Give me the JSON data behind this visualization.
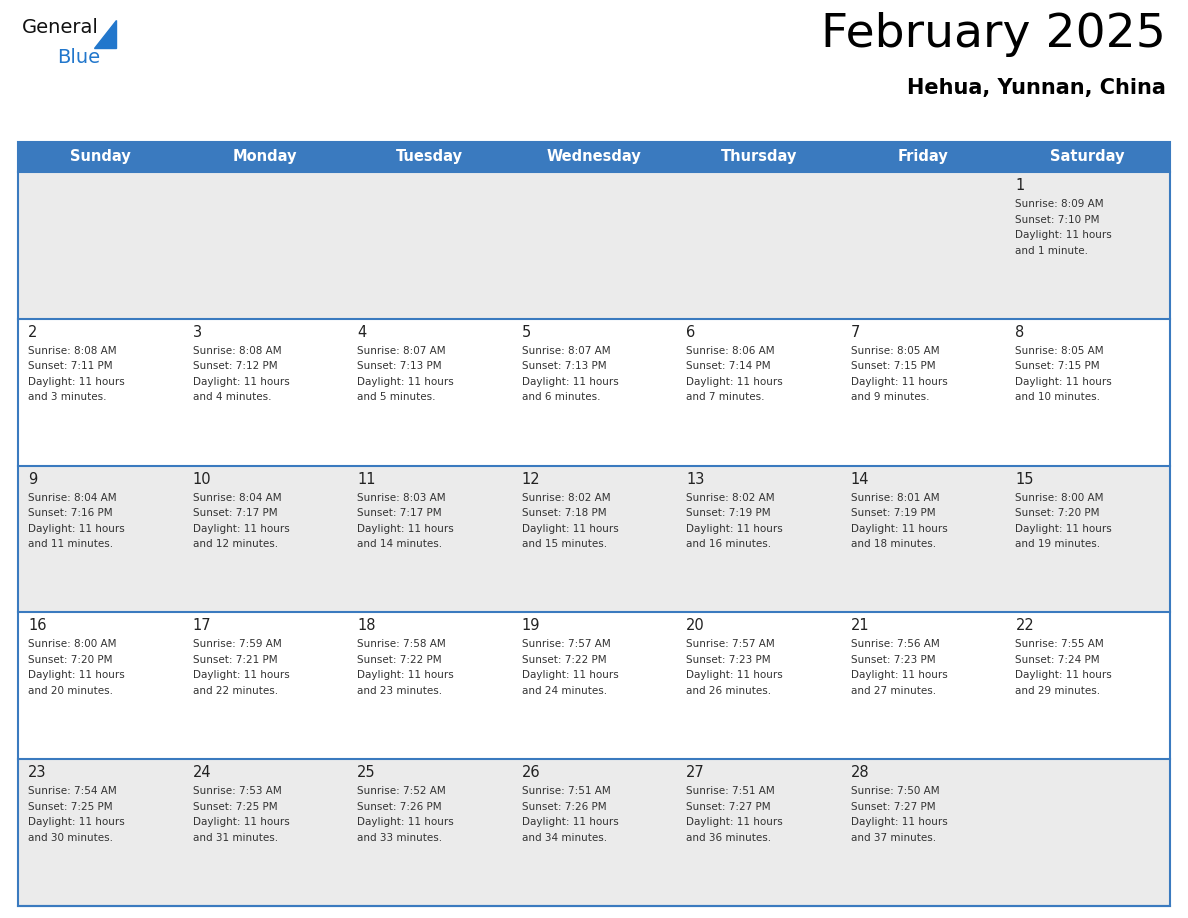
{
  "title": "February 2025",
  "subtitle": "Hehua, Yunnan, China",
  "header_color": "#3a7abf",
  "header_text_color": "#ffffff",
  "days_of_week": [
    "Sunday",
    "Monday",
    "Tuesday",
    "Wednesday",
    "Thursday",
    "Friday",
    "Saturday"
  ],
  "cell_bg_light": "#ebebeb",
  "cell_bg_white": "#ffffff",
  "day_num_color": "#222222",
  "text_color": "#333333",
  "logo_general_color": "#111111",
  "logo_blue_color": "#2277cc",
  "separator_color": "#3a7abf",
  "calendar_data": [
    [
      null,
      null,
      null,
      null,
      null,
      null,
      {
        "day": 1,
        "sunrise": "8:09 AM",
        "sunset": "7:10 PM",
        "daylight": "11 hours",
        "daylight2": "and 1 minute."
      }
    ],
    [
      {
        "day": 2,
        "sunrise": "8:08 AM",
        "sunset": "7:11 PM",
        "daylight": "11 hours",
        "daylight2": "and 3 minutes."
      },
      {
        "day": 3,
        "sunrise": "8:08 AM",
        "sunset": "7:12 PM",
        "daylight": "11 hours",
        "daylight2": "and 4 minutes."
      },
      {
        "day": 4,
        "sunrise": "8:07 AM",
        "sunset": "7:13 PM",
        "daylight": "11 hours",
        "daylight2": "and 5 minutes."
      },
      {
        "day": 5,
        "sunrise": "8:07 AM",
        "sunset": "7:13 PM",
        "daylight": "11 hours",
        "daylight2": "and 6 minutes."
      },
      {
        "day": 6,
        "sunrise": "8:06 AM",
        "sunset": "7:14 PM",
        "daylight": "11 hours",
        "daylight2": "and 7 minutes."
      },
      {
        "day": 7,
        "sunrise": "8:05 AM",
        "sunset": "7:15 PM",
        "daylight": "11 hours",
        "daylight2": "and 9 minutes."
      },
      {
        "day": 8,
        "sunrise": "8:05 AM",
        "sunset": "7:15 PM",
        "daylight": "11 hours",
        "daylight2": "and 10 minutes."
      }
    ],
    [
      {
        "day": 9,
        "sunrise": "8:04 AM",
        "sunset": "7:16 PM",
        "daylight": "11 hours",
        "daylight2": "and 11 minutes."
      },
      {
        "day": 10,
        "sunrise": "8:04 AM",
        "sunset": "7:17 PM",
        "daylight": "11 hours",
        "daylight2": "and 12 minutes."
      },
      {
        "day": 11,
        "sunrise": "8:03 AM",
        "sunset": "7:17 PM",
        "daylight": "11 hours",
        "daylight2": "and 14 minutes."
      },
      {
        "day": 12,
        "sunrise": "8:02 AM",
        "sunset": "7:18 PM",
        "daylight": "11 hours",
        "daylight2": "and 15 minutes."
      },
      {
        "day": 13,
        "sunrise": "8:02 AM",
        "sunset": "7:19 PM",
        "daylight": "11 hours",
        "daylight2": "and 16 minutes."
      },
      {
        "day": 14,
        "sunrise": "8:01 AM",
        "sunset": "7:19 PM",
        "daylight": "11 hours",
        "daylight2": "and 18 minutes."
      },
      {
        "day": 15,
        "sunrise": "8:00 AM",
        "sunset": "7:20 PM",
        "daylight": "11 hours",
        "daylight2": "and 19 minutes."
      }
    ],
    [
      {
        "day": 16,
        "sunrise": "8:00 AM",
        "sunset": "7:20 PM",
        "daylight": "11 hours",
        "daylight2": "and 20 minutes."
      },
      {
        "day": 17,
        "sunrise": "7:59 AM",
        "sunset": "7:21 PM",
        "daylight": "11 hours",
        "daylight2": "and 22 minutes."
      },
      {
        "day": 18,
        "sunrise": "7:58 AM",
        "sunset": "7:22 PM",
        "daylight": "11 hours",
        "daylight2": "and 23 minutes."
      },
      {
        "day": 19,
        "sunrise": "7:57 AM",
        "sunset": "7:22 PM",
        "daylight": "11 hours",
        "daylight2": "and 24 minutes."
      },
      {
        "day": 20,
        "sunrise": "7:57 AM",
        "sunset": "7:23 PM",
        "daylight": "11 hours",
        "daylight2": "and 26 minutes."
      },
      {
        "day": 21,
        "sunrise": "7:56 AM",
        "sunset": "7:23 PM",
        "daylight": "11 hours",
        "daylight2": "and 27 minutes."
      },
      {
        "day": 22,
        "sunrise": "7:55 AM",
        "sunset": "7:24 PM",
        "daylight": "11 hours",
        "daylight2": "and 29 minutes."
      }
    ],
    [
      {
        "day": 23,
        "sunrise": "7:54 AM",
        "sunset": "7:25 PM",
        "daylight": "11 hours",
        "daylight2": "and 30 minutes."
      },
      {
        "day": 24,
        "sunrise": "7:53 AM",
        "sunset": "7:25 PM",
        "daylight": "11 hours",
        "daylight2": "and 31 minutes."
      },
      {
        "day": 25,
        "sunrise": "7:52 AM",
        "sunset": "7:26 PM",
        "daylight": "11 hours",
        "daylight2": "and 33 minutes."
      },
      {
        "day": 26,
        "sunrise": "7:51 AM",
        "sunset": "7:26 PM",
        "daylight": "11 hours",
        "daylight2": "and 34 minutes."
      },
      {
        "day": 27,
        "sunrise": "7:51 AM",
        "sunset": "7:27 PM",
        "daylight": "11 hours",
        "daylight2": "and 36 minutes."
      },
      {
        "day": 28,
        "sunrise": "7:50 AM",
        "sunset": "7:27 PM",
        "daylight": "11 hours",
        "daylight2": "and 37 minutes."
      },
      null
    ]
  ]
}
